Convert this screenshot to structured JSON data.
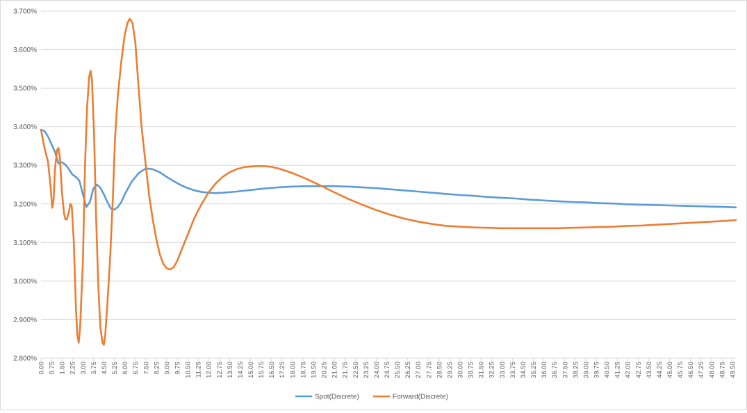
{
  "chart_data": {
    "type": "line",
    "x_start": 0,
    "x_step": 0.25,
    "x_end": 49.75,
    "x_tick_labels": [
      "0.00",
      "0.75",
      "1.50",
      "2.25",
      "3.00",
      "3.75",
      "4.50",
      "5.25",
      "6.00",
      "6.75",
      "7.50",
      "8.25",
      "9.00",
      "9.75",
      "10.50",
      "11.25",
      "12.00",
      "12.75",
      "13.50",
      "14.25",
      "15.00",
      "15.75",
      "16.50",
      "17.25",
      "18.00",
      "18.75",
      "19.50",
      "20.25",
      "21.00",
      "21.75",
      "22.50",
      "23.25",
      "24.00",
      "24.75",
      "25.50",
      "26.25",
      "27.00",
      "27.75",
      "28.50",
      "29.25",
      "30.00",
      "30.75",
      "31.50",
      "32.25",
      "33.00",
      "33.75",
      "34.50",
      "35.25",
      "36.00",
      "36.75",
      "37.50",
      "38.25",
      "39.00",
      "39.75",
      "40.50",
      "41.25",
      "42.00",
      "42.75",
      "43.50",
      "44.25",
      "45.00",
      "45.75",
      "46.50",
      "47.25",
      "48.00",
      "48.75",
      "49.50"
    ],
    "y_tick_labels": [
      "2.800%",
      "2.900%",
      "3.000%",
      "3.100%",
      "3.200%",
      "3.300%",
      "3.400%",
      "3.500%",
      "3.600%",
      "3.700%"
    ],
    "ylim": [
      2.8,
      3.7
    ],
    "grid": true,
    "legend_position": "bottom",
    "series": [
      {
        "name": "Spot(Discrete)",
        "color": "#5b9bd5",
        "points": [
          [
            0,
            3.392
          ],
          [
            0.25,
            3.389
          ],
          [
            0.5,
            3.375
          ],
          [
            0.75,
            3.355
          ],
          [
            1.0,
            3.335
          ],
          [
            1.25,
            3.305
          ],
          [
            1.5,
            3.308
          ],
          [
            1.75,
            3.302
          ],
          [
            2.0,
            3.29
          ],
          [
            2.25,
            3.276
          ],
          [
            2.5,
            3.27
          ],
          [
            2.75,
            3.26
          ],
          [
            3.0,
            3.225
          ],
          [
            3.25,
            3.192
          ],
          [
            3.5,
            3.205
          ],
          [
            3.75,
            3.24
          ],
          [
            4.0,
            3.25
          ],
          [
            4.25,
            3.242
          ],
          [
            4.5,
            3.225
          ],
          [
            4.75,
            3.205
          ],
          [
            5.0,
            3.188
          ],
          [
            5.25,
            3.185
          ],
          [
            5.5,
            3.192
          ],
          [
            5.75,
            3.205
          ],
          [
            6.0,
            3.225
          ],
          [
            6.5,
            3.258
          ],
          [
            7.0,
            3.28
          ],
          [
            7.5,
            3.292
          ],
          [
            8.0,
            3.29
          ],
          [
            8.5,
            3.282
          ],
          [
            9.0,
            3.27
          ],
          [
            9.5,
            3.259
          ],
          [
            10.0,
            3.249
          ],
          [
            10.5,
            3.241
          ],
          [
            11.0,
            3.235
          ],
          [
            11.5,
            3.231
          ],
          [
            12.0,
            3.229
          ],
          [
            12.5,
            3.228
          ],
          [
            13.0,
            3.229
          ],
          [
            14.0,
            3.232
          ],
          [
            15.0,
            3.236
          ],
          [
            16.0,
            3.24
          ],
          [
            17.0,
            3.243
          ],
          [
            18.0,
            3.245
          ],
          [
            19.0,
            3.246
          ],
          [
            20.0,
            3.246
          ],
          [
            21.0,
            3.246
          ],
          [
            22.0,
            3.245
          ],
          [
            23.0,
            3.243
          ],
          [
            24.0,
            3.241
          ],
          [
            25.0,
            3.238
          ],
          [
            26.0,
            3.235
          ],
          [
            27.0,
            3.232
          ],
          [
            28.0,
            3.229
          ],
          [
            29.0,
            3.226
          ],
          [
            30.0,
            3.223
          ],
          [
            31.0,
            3.221
          ],
          [
            32.0,
            3.218
          ],
          [
            33.0,
            3.216
          ],
          [
            34.0,
            3.214
          ],
          [
            35.0,
            3.211
          ],
          [
            36.0,
            3.209
          ],
          [
            37.0,
            3.207
          ],
          [
            38.0,
            3.205
          ],
          [
            39.0,
            3.204
          ],
          [
            40.0,
            3.202
          ],
          [
            41.0,
            3.201
          ],
          [
            42.0,
            3.199
          ],
          [
            43.0,
            3.198
          ],
          [
            44.0,
            3.197
          ],
          [
            45.0,
            3.196
          ],
          [
            46.0,
            3.195
          ],
          [
            47.0,
            3.194
          ],
          [
            48.0,
            3.193
          ],
          [
            49.0,
            3.192
          ],
          [
            49.75,
            3.191
          ]
        ]
      },
      {
        "name": "Forward(Discrete)",
        "color": "#ed7d31",
        "points": [
          [
            0,
            3.392
          ],
          [
            0.25,
            3.345
          ],
          [
            0.5,
            3.31
          ],
          [
            0.7,
            3.24
          ],
          [
            0.8,
            3.19
          ],
          [
            0.9,
            3.21
          ],
          [
            1.0,
            3.29
          ],
          [
            1.15,
            3.34
          ],
          [
            1.25,
            3.345
          ],
          [
            1.35,
            3.32
          ],
          [
            1.5,
            3.23
          ],
          [
            1.65,
            3.175
          ],
          [
            1.75,
            3.16
          ],
          [
            1.85,
            3.16
          ],
          [
            2.0,
            3.18
          ],
          [
            2.1,
            3.2
          ],
          [
            2.2,
            3.195
          ],
          [
            2.35,
            3.1
          ],
          [
            2.5,
            2.93
          ],
          [
            2.6,
            2.86
          ],
          [
            2.7,
            2.84
          ],
          [
            2.8,
            2.88
          ],
          [
            3.0,
            3.05
          ],
          [
            3.15,
            3.3
          ],
          [
            3.3,
            3.45
          ],
          [
            3.45,
            3.53
          ],
          [
            3.55,
            3.545
          ],
          [
            3.65,
            3.52
          ],
          [
            3.8,
            3.38
          ],
          [
            3.95,
            3.16
          ],
          [
            4.1,
            2.99
          ],
          [
            4.25,
            2.88
          ],
          [
            4.4,
            2.84
          ],
          [
            4.5,
            2.835
          ],
          [
            4.6,
            2.86
          ],
          [
            4.75,
            2.94
          ],
          [
            4.95,
            3.06
          ],
          [
            5.15,
            3.22
          ],
          [
            5.3,
            3.37
          ],
          [
            5.5,
            3.48
          ],
          [
            5.75,
            3.57
          ],
          [
            6.0,
            3.64
          ],
          [
            6.2,
            3.67
          ],
          [
            6.35,
            3.68
          ],
          [
            6.55,
            3.67
          ],
          [
            6.75,
            3.62
          ],
          [
            6.95,
            3.52
          ],
          [
            7.2,
            3.4
          ],
          [
            7.5,
            3.3
          ],
          [
            7.75,
            3.22
          ],
          [
            8.0,
            3.16
          ],
          [
            8.25,
            3.11
          ],
          [
            8.5,
            3.07
          ],
          [
            8.75,
            3.045
          ],
          [
            9.0,
            3.033
          ],
          [
            9.25,
            3.03
          ],
          [
            9.5,
            3.036
          ],
          [
            9.75,
            3.052
          ],
          [
            10.0,
            3.075
          ],
          [
            10.5,
            3.12
          ],
          [
            11.0,
            3.165
          ],
          [
            11.5,
            3.2
          ],
          [
            12.0,
            3.23
          ],
          [
            12.5,
            3.253
          ],
          [
            13.0,
            3.27
          ],
          [
            13.5,
            3.282
          ],
          [
            14.0,
            3.29
          ],
          [
            14.5,
            3.295
          ],
          [
            15.0,
            3.297
          ],
          [
            15.5,
            3.298
          ],
          [
            16.0,
            3.298
          ],
          [
            16.5,
            3.296
          ],
          [
            17.0,
            3.292
          ],
          [
            18.0,
            3.28
          ],
          [
            19.0,
            3.265
          ],
          [
            20.0,
            3.248
          ],
          [
            21.0,
            3.23
          ],
          [
            22.0,
            3.213
          ],
          [
            23.0,
            3.198
          ],
          [
            24.0,
            3.184
          ],
          [
            25.0,
            3.172
          ],
          [
            26.0,
            3.162
          ],
          [
            27.0,
            3.154
          ],
          [
            28.0,
            3.148
          ],
          [
            29.0,
            3.143
          ],
          [
            30.0,
            3.141
          ],
          [
            31.0,
            3.139
          ],
          [
            32.0,
            3.138
          ],
          [
            33.0,
            3.137
          ],
          [
            34.0,
            3.137
          ],
          [
            35.0,
            3.137
          ],
          [
            36.0,
            3.137
          ],
          [
            37.0,
            3.137
          ],
          [
            38.0,
            3.138
          ],
          [
            39.0,
            3.139
          ],
          [
            40.0,
            3.14
          ],
          [
            41.0,
            3.141
          ],
          [
            42.0,
            3.143
          ],
          [
            43.0,
            3.144
          ],
          [
            44.0,
            3.146
          ],
          [
            45.0,
            3.148
          ],
          [
            46.0,
            3.15
          ],
          [
            47.0,
            3.152
          ],
          [
            48.0,
            3.154
          ],
          [
            49.0,
            3.156
          ],
          [
            49.75,
            3.158
          ]
        ]
      }
    ]
  }
}
